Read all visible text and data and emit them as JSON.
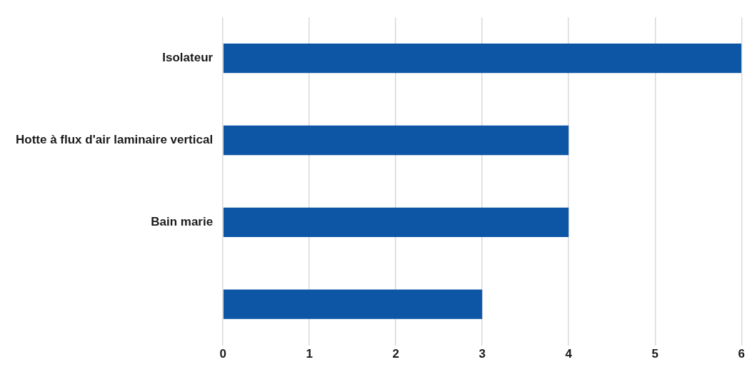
{
  "chart_data": {
    "type": "bar",
    "orientation": "horizontal",
    "categories": [
      "Isolateur",
      "Hotte à flux d'air laminaire vertical",
      "Bain marie",
      null
    ],
    "values": [
      6,
      4,
      4,
      3
    ],
    "color": "#0d56a6",
    "xlim": [
      0,
      6
    ],
    "xticks": [
      0,
      1,
      2,
      3,
      4,
      5,
      6
    ],
    "grid": "x",
    "legend": false
  }
}
